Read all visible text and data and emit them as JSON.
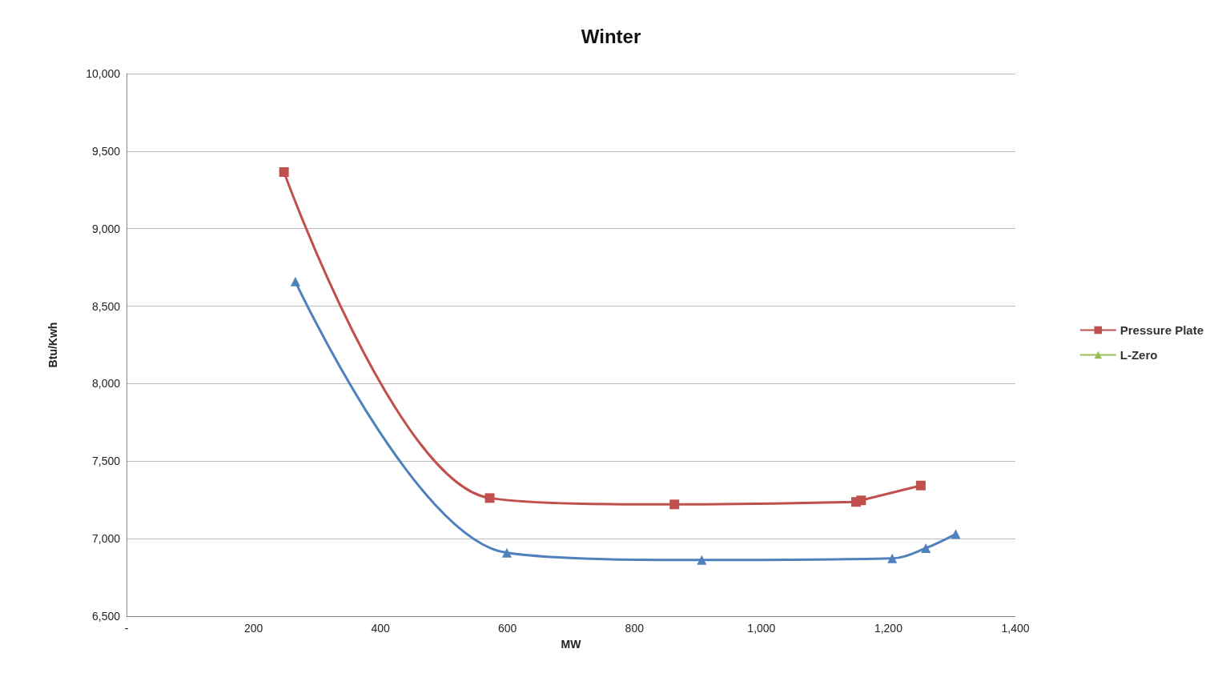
{
  "chart_data": {
    "type": "line",
    "title": "Winter",
    "xlabel": "MW",
    "ylabel": "Btu/Kwh",
    "xlim": [
      0,
      1400
    ],
    "xticks": [
      {
        "value": 0,
        "label": "-"
      },
      200,
      400,
      600,
      800,
      {
        "value": 1000,
        "label": "1,000"
      },
      {
        "value": 1200,
        "label": "1,200"
      },
      {
        "value": 1400,
        "label": "1,400"
      }
    ],
    "ylim": [
      6500,
      10000
    ],
    "yticks": [
      {
        "value": 6500,
        "label": "6,500"
      },
      {
        "value": 7000,
        "label": "7,000"
      },
      {
        "value": 7500,
        "label": "7,500"
      },
      {
        "value": 8000,
        "label": "8,000"
      },
      {
        "value": 8500,
        "label": "8,500"
      },
      {
        "value": 9000,
        "label": "9,000"
      },
      {
        "value": 9500,
        "label": "9,500"
      },
      {
        "value": 10000,
        "label": "10,000"
      }
    ],
    "grid": "y",
    "legend": "right",
    "line_style": "solid",
    "series": [
      {
        "name": "Pressure Plate",
        "color": "#c0504d",
        "marker": "square",
        "x": [
          248,
          572,
          863,
          1149,
          1157,
          1251
        ],
        "values": [
          9365,
          7262,
          7221,
          7237,
          7247,
          7343
        ]
      },
      {
        "name": "L-Zero",
        "color": "#9bbb59",
        "marker": "triangle"
      },
      {
        "color": "#4f81bd",
        "marker": "triangle",
        "x": [
          266,
          599,
          906,
          1206,
          1259,
          1306
        ],
        "values": [
          8659,
          6909,
          6863,
          6873,
          6939,
          7030
        ]
      }
    ]
  }
}
